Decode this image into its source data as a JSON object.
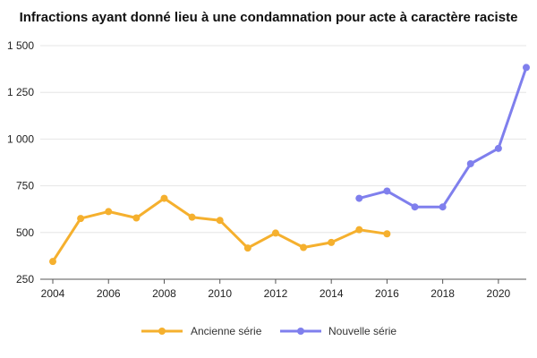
{
  "chart_data": {
    "type": "line",
    "title": "Infractions ayant donné lieu à une condamnation pour acte à caractère raciste",
    "xlabel": "",
    "ylabel": "",
    "xlim": [
      2004,
      2021
    ],
    "ylim": [
      250,
      1500
    ],
    "x_ticks": [
      2004,
      2006,
      2008,
      2010,
      2012,
      2014,
      2016,
      2018,
      2020
    ],
    "x_tick_labels": [
      "2004",
      "2006",
      "2008",
      "2010",
      "2012",
      "2014",
      "2016",
      "2018",
      "2020"
    ],
    "y_ticks": [
      250,
      500,
      750,
      1000,
      1250,
      1500
    ],
    "y_tick_labels": [
      "250",
      "500",
      "750",
      "1 000",
      "1 250",
      "1 500"
    ],
    "grid": true,
    "legend_position": "bottom",
    "series": [
      {
        "name": "Ancienne série",
        "color": "#F5B02E",
        "x": [
          2004,
          2005,
          2006,
          2007,
          2008,
          2009,
          2010,
          2011,
          2012,
          2013,
          2014,
          2015,
          2016
        ],
        "values": [
          345,
          575,
          612,
          578,
          683,
          582,
          565,
          417,
          497,
          420,
          447,
          515,
          493
        ]
      },
      {
        "name": "Nouvelle série",
        "color": "#7F7FED",
        "x": [
          2015,
          2016,
          2017,
          2018,
          2019,
          2020,
          2021
        ],
        "values": [
          683,
          722,
          637,
          637,
          868,
          950,
          1383
        ]
      }
    ]
  }
}
